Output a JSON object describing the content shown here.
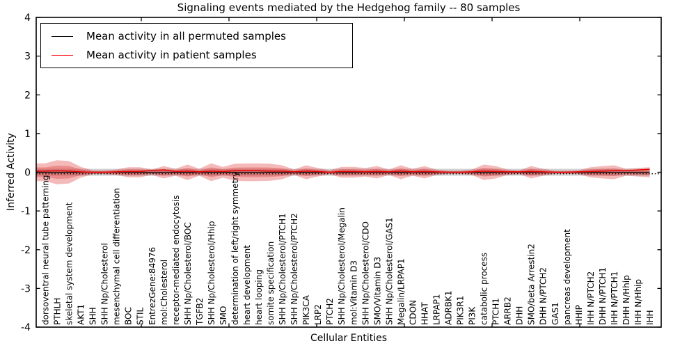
{
  "title": "Signaling events mediated by the Hedgehog family -- 80 samples",
  "axes": {
    "xlabel": "Cellular Entities",
    "ylabel": "Inferred Activity",
    "ytick_labels": [
      "4",
      "3",
      "2",
      "1",
      "0",
      "-1",
      "-2",
      "-3",
      "-4"
    ]
  },
  "legend": {
    "entries": [
      {
        "label": "Mean activity in all permuted samples",
        "color": "#000000"
      },
      {
        "label": "Mean activity in patient samples",
        "color": "#ff1a1a"
      }
    ]
  },
  "colors": {
    "patient_band": "#dd2c2c",
    "permuted_band": "#a8a8a8",
    "patient_line": "#e60000",
    "permuted_line": "#000000",
    "zero_line": "#000000",
    "spine": "#000000"
  },
  "chart_data": {
    "type": "area",
    "title": "Signaling events mediated by the Hedgehog family -- 80 samples",
    "xlabel": "Cellular Entities",
    "ylabel": "Inferred Activity",
    "ylim": [
      -4,
      4
    ],
    "grid": false,
    "legend_position": "upper left",
    "categories": [
      "dorsoventral neural tube patterning",
      "PTHLH",
      "skeletal system development",
      "AKT1",
      "SHH",
      "SHH Np/Cholesterol",
      "mesenchymal cell differentiation",
      "BOC",
      "STIL",
      "EntrezGene:84976",
      "mol:Cholesterol",
      "receptor-mediated endocytosis",
      "SHH Np/Cholesterol/BOC",
      "TGFB2",
      "SHH Np/Cholesterol/Hhip",
      "SMO",
      "determination of left/right symmetry",
      "heart development",
      "heart looping",
      "somite specification",
      "SHH Np/Cholesterol/PTCH1",
      "SHH Np/Cholesterol/PTCH2",
      "PIK3CA",
      "LRP2",
      "PTCH2",
      "SHH Np/Cholesterol/Megalin",
      "mol:Vitamin D3",
      "SHH Np/Cholesterol/CDO",
      "SMO/Vitamin D3",
      "SHH Np/Cholesterol/GAS1",
      "Megalin/LRPAP1",
      "CDON",
      "HHAT",
      "LRPAP1",
      "ADRBK1",
      "PIK3R1",
      "PI3K",
      "catabolic process",
      "PTCH1",
      "ARRB2",
      "DHH",
      "SMO/beta Arrestin2",
      "DHH N/PTCH2",
      "GAS1",
      "pancreas development",
      "HHIP",
      "IHH N/PTCH2",
      "DHH N/PTCH1",
      "IHH N/PTCH1",
      "DHH N/Hhip",
      "IHH N/Hhip",
      "IHH"
    ],
    "series": [
      {
        "name": "Mean activity in all permuted samples",
        "role": "line",
        "values": [
          0,
          0,
          0,
          0,
          0,
          0,
          0,
          0,
          0,
          0,
          0,
          0,
          0,
          0,
          0,
          0,
          0,
          0,
          0,
          0,
          0,
          0,
          0,
          0,
          0,
          0,
          0,
          0,
          0,
          0,
          0,
          0,
          0,
          0,
          0,
          0,
          0,
          0,
          0,
          0,
          0,
          0,
          0,
          0,
          0,
          0,
          0,
          0,
          0,
          0,
          0,
          0
        ]
      },
      {
        "name": "Mean activity in patient samples",
        "role": "line",
        "values": [
          0.03,
          0.04,
          0.03,
          0.01,
          0,
          0,
          0.01,
          0.02,
          0.02,
          0.05,
          0.06,
          0.02,
          0.03,
          0.01,
          0.03,
          0.02,
          0.04,
          0.04,
          0.04,
          0.03,
          0.03,
          0.01,
          0.03,
          0.02,
          0,
          0.02,
          0.02,
          0.01,
          0.02,
          0.01,
          0.03,
          0.01,
          0.02,
          0.01,
          0,
          0,
          0.01,
          0.03,
          0.02,
          0.01,
          0.01,
          0.02,
          0.01,
          0,
          0,
          0.01,
          0.02,
          0.03,
          0.04,
          0.04,
          0.06,
          0.08
        ]
      },
      {
        "name": "Patient sample spread (half-width)",
        "role": "band",
        "values": [
          0.23,
          0.31,
          0.29,
          0.14,
          0.05,
          0.05,
          0.07,
          0.13,
          0.13,
          0.07,
          0.16,
          0.09,
          0.2,
          0.09,
          0.23,
          0.14,
          0.22,
          0.23,
          0.23,
          0.22,
          0.18,
          0.07,
          0.18,
          0.11,
          0.05,
          0.14,
          0.14,
          0.11,
          0.16,
          0.07,
          0.18,
          0.09,
          0.16,
          0.07,
          0.04,
          0.04,
          0.07,
          0.2,
          0.16,
          0.07,
          0.05,
          0.16,
          0.09,
          0.04,
          0.04,
          0.05,
          0.13,
          0.16,
          0.18,
          0.09,
          0.11,
          0.13
        ]
      },
      {
        "name": "Permuted sample spread (half-width)",
        "role": "band",
        "values": [
          0.09,
          0.09,
          0.09,
          0.09,
          0.09,
          0.09,
          0.09,
          0.09,
          0.09,
          0.09,
          0.09,
          0.09,
          0.09,
          0.09,
          0.09,
          0.09,
          0.09,
          0.09,
          0.09,
          0.09,
          0.09,
          0.09,
          0.09,
          0.09,
          0.09,
          0.09,
          0.09,
          0.09,
          0.09,
          0.09,
          0.09,
          0.09,
          0.09,
          0.09,
          0.09,
          0.09,
          0.09,
          0.09,
          0.09,
          0.09,
          0.09,
          0.09,
          0.09,
          0.09,
          0.09,
          0.09,
          0.09,
          0.09,
          0.09,
          0.09,
          0.09,
          0.09
        ]
      }
    ],
    "inner_band_fraction": 0.55
  }
}
